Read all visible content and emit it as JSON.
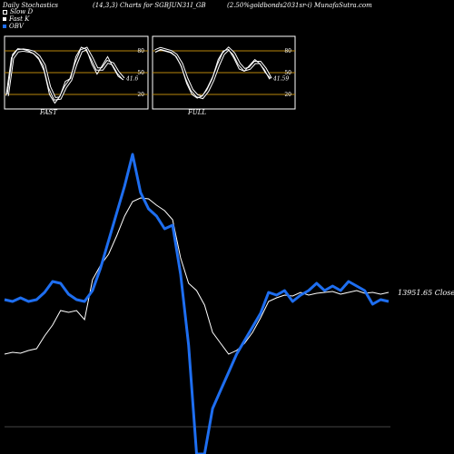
{
  "header": {
    "left": "Daily Stochastics",
    "center": "(14,3,3) Charts for SGBJUN31I_GB",
    "right": "(2.50%goldbonds2031sr-i) MunafaSutra.com"
  },
  "legend": [
    {
      "label": "Slow D",
      "color": "#000000"
    },
    {
      "label": "Fast K",
      "color": "#ffffff"
    },
    {
      "label": "OBV",
      "color": "#1e6ef0"
    }
  ],
  "chart_data": [
    {
      "type": "line",
      "title": "FAST",
      "ylim": [
        0,
        100
      ],
      "ytick_labels": [
        "80",
        "50",
        "20"
      ],
      "reference_lines": [
        80,
        50,
        20
      ],
      "last_value_label": "41.6",
      "series": [
        {
          "name": "Fast K",
          "values": [
            20,
            75,
            83,
            82,
            80,
            76,
            68,
            52,
            20,
            8,
            18,
            38,
            42,
            72,
            85,
            82,
            62,
            48,
            60,
            72,
            58,
            45,
            40
          ]
        },
        {
          "name": "Slow D",
          "values": [
            18,
            70,
            80,
            81,
            80,
            78,
            72,
            60,
            30,
            14,
            15,
            30,
            40,
            62,
            80,
            83,
            70,
            55,
            55,
            65,
            62,
            50,
            41.6
          ]
        }
      ]
    },
    {
      "type": "line",
      "title": "FULL",
      "ylim": [
        0,
        100
      ],
      "ytick_labels": [
        "80",
        "50",
        "20"
      ],
      "reference_lines": [
        80,
        50,
        20
      ],
      "last_value_label": "41.59",
      "series": [
        {
          "name": "Fast K",
          "values": [
            78,
            82,
            80,
            78,
            72,
            58,
            35,
            20,
            15,
            18,
            30,
            45,
            68,
            80,
            82,
            70,
            55,
            52,
            60,
            68,
            62,
            50,
            42
          ]
        },
        {
          "name": "Slow D",
          "values": [
            80,
            83,
            81,
            79,
            74,
            62,
            42,
            26,
            18,
            16,
            25,
            40,
            60,
            76,
            83,
            76,
            62,
            54,
            56,
            64,
            64,
            55,
            41.59
          ]
        }
      ]
    },
    {
      "type": "line",
      "title": "",
      "last_value_label": "13951.65",
      "close_label": "Close",
      "series": [
        {
          "name": "Close",
          "values": [
            80,
            82,
            81,
            84,
            86,
            100,
            112,
            128,
            126,
            128,
            118,
            162,
            178,
            190,
            210,
            232,
            248,
            252,
            251,
            244,
            238,
            228,
            186,
            158,
            150,
            134,
            104,
            92,
            80,
            84,
            92,
            104,
            120,
            138,
            142,
            145,
            144,
            148,
            145,
            147,
            148,
            149,
            146,
            148,
            150,
            147,
            148,
            146,
            148
          ]
        },
        {
          "name": "OBV",
          "values": [
            140,
            138,
            142,
            138,
            140,
            148,
            160,
            158,
            146,
            140,
            138,
            150,
            175,
            205,
            235,
            265,
            300,
            258,
            240,
            232,
            218,
            222,
            168,
            90,
            -80,
            -80,
            20,
            40,
            60,
            80,
            95,
            110,
            125,
            148,
            145,
            150,
            138,
            145,
            150,
            158,
            150,
            155,
            150,
            160,
            155,
            150,
            135,
            140,
            138
          ]
        }
      ]
    }
  ]
}
